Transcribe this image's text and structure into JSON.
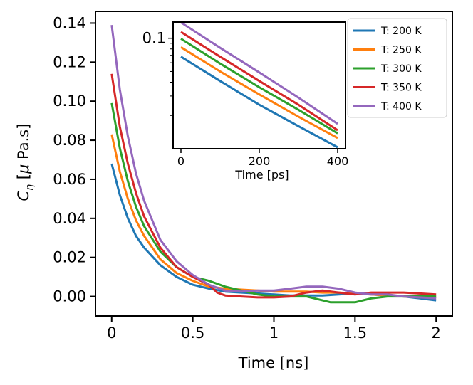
{
  "chart_data": [
    {
      "type": "line",
      "role": "main",
      "xlabel": "Time [ns]",
      "ylabel": "C_η [μ Pa.s]",
      "xlim": [
        -0.1,
        2.1
      ],
      "ylim": [
        -0.01,
        0.146
      ],
      "x_ticks": [
        0,
        0.5,
        1,
        1.5,
        2
      ],
      "x_tick_labels": [
        "0",
        "0.5",
        "1",
        "1.5",
        "2"
      ],
      "y_ticks": [
        0.0,
        0.02,
        0.04,
        0.06,
        0.08,
        0.1,
        0.12,
        0.14
      ],
      "y_tick_labels": [
        "0.00",
        "0.02",
        "0.04",
        "0.06",
        "0.08",
        "0.10",
        "0.12",
        "0.14"
      ],
      "grid": false,
      "legend_position": "top-right",
      "series": [
        {
          "name": "T: 200 K",
          "color": "#1f77b4",
          "x": [
            0,
            0.05,
            0.1,
            0.15,
            0.2,
            0.3,
            0.4,
            0.5,
            0.6,
            0.7,
            0.8,
            0.9,
            1.0,
            1.1,
            1.2,
            1.3,
            1.4,
            1.5,
            1.6,
            1.7,
            1.8,
            1.9,
            2.0
          ],
          "y": [
            0.068,
            0.052,
            0.04,
            0.031,
            0.025,
            0.016,
            0.01,
            0.006,
            0.004,
            0.0025,
            0.002,
            0.0015,
            0.001,
            0.0005,
            0.0005,
            0.0005,
            0.001,
            0.0015,
            0.001,
            0.0005,
            0.0,
            -0.001,
            -0.002
          ]
        },
        {
          "name": "T: 250 K",
          "color": "#ff7f0e",
          "x": [
            0,
            0.05,
            0.1,
            0.15,
            0.2,
            0.3,
            0.4,
            0.5,
            0.6,
            0.7,
            0.8,
            0.9,
            1.0,
            1.1,
            1.2,
            1.3,
            1.4,
            1.5,
            1.6,
            1.7,
            1.8,
            1.9,
            2.0
          ],
          "y": [
            0.083,
            0.064,
            0.05,
            0.039,
            0.031,
            0.019,
            0.012,
            0.008,
            0.005,
            0.004,
            0.0035,
            0.003,
            0.0025,
            0.0025,
            0.0025,
            0.002,
            0.002,
            0.0015,
            0.001,
            0.0005,
            0.0,
            -0.0005,
            -0.0005
          ]
        },
        {
          "name": "T: 300 K",
          "color": "#2ca02c",
          "x": [
            0,
            0.05,
            0.1,
            0.15,
            0.2,
            0.3,
            0.4,
            0.5,
            0.6,
            0.7,
            0.8,
            0.9,
            1.0,
            1.1,
            1.2,
            1.3,
            1.35,
            1.4,
            1.5,
            1.6,
            1.7,
            1.8,
            1.9,
            2.0
          ],
          "y": [
            0.099,
            0.076,
            0.059,
            0.046,
            0.036,
            0.023,
            0.015,
            0.01,
            0.008,
            0.005,
            0.003,
            0.001,
            0.0,
            0.0,
            0.0,
            -0.002,
            -0.003,
            -0.003,
            -0.003,
            -0.001,
            0.0,
            0.0,
            0.0005,
            0.0
          ]
        },
        {
          "name": "T: 350 K",
          "color": "#d62728",
          "x": [
            0,
            0.05,
            0.1,
            0.15,
            0.2,
            0.3,
            0.4,
            0.5,
            0.6,
            0.65,
            0.7,
            0.8,
            0.9,
            1.0,
            1.1,
            1.2,
            1.3,
            1.4,
            1.5,
            1.6,
            1.7,
            1.8,
            1.9,
            2.0
          ],
          "y": [
            0.114,
            0.087,
            0.068,
            0.053,
            0.041,
            0.025,
            0.015,
            0.01,
            0.006,
            0.002,
            0.0005,
            0.0,
            -0.0005,
            -0.0005,
            0.0,
            0.002,
            0.003,
            0.002,
            0.001,
            0.002,
            0.002,
            0.002,
            0.0015,
            0.001
          ]
        },
        {
          "name": "T: 400 K",
          "color": "#9467bd",
          "x": [
            0,
            0.05,
            0.1,
            0.15,
            0.2,
            0.3,
            0.4,
            0.5,
            0.6,
            0.7,
            0.8,
            0.9,
            1.0,
            1.1,
            1.2,
            1.3,
            1.4,
            1.5,
            1.6,
            1.7,
            1.8,
            1.9,
            2.0
          ],
          "y": [
            0.139,
            0.106,
            0.082,
            0.063,
            0.049,
            0.029,
            0.018,
            0.011,
            0.006,
            0.003,
            0.0025,
            0.003,
            0.003,
            0.004,
            0.005,
            0.005,
            0.004,
            0.002,
            0.001,
            0.001,
            0.0,
            -0.0005,
            -0.001
          ]
        }
      ]
    },
    {
      "type": "line",
      "role": "inset",
      "xlabel": "Time [ps]",
      "ylabel": "",
      "y_scale": "log",
      "xlim": [
        -20,
        420
      ],
      "ylim": [
        0.01,
        0.14
      ],
      "x_ticks": [
        0,
        200,
        400
      ],
      "x_tick_labels": [
        "0",
        "200",
        "400"
      ],
      "y_ticks": [
        0.1
      ],
      "y_tick_labels": [
        "0.1"
      ],
      "y_minor_ticks": [
        0.02,
        0.03,
        0.04,
        0.05,
        0.06,
        0.07,
        0.08,
        0.09
      ],
      "grid": false,
      "series": [
        {
          "name": "T: 200 K",
          "color": "#1f77b4",
          "x": [
            0,
            100,
            200,
            300,
            400
          ],
          "y": [
            0.068,
            0.041,
            0.025,
            0.016,
            0.0103
          ]
        },
        {
          "name": "T: 250 K",
          "color": "#ff7f0e",
          "x": [
            0,
            100,
            200,
            300,
            400
          ],
          "y": [
            0.083,
            0.05,
            0.031,
            0.0195,
            0.0125
          ]
        },
        {
          "name": "T: 300 K",
          "color": "#2ca02c",
          "x": [
            0,
            100,
            200,
            300,
            400
          ],
          "y": [
            0.099,
            0.059,
            0.036,
            0.0225,
            0.0138
          ]
        },
        {
          "name": "T: 350 K",
          "color": "#d62728",
          "x": [
            0,
            100,
            200,
            300,
            400
          ],
          "y": [
            0.114,
            0.068,
            0.041,
            0.025,
            0.0147
          ]
        },
        {
          "name": "T: 400 K",
          "color": "#9467bd",
          "x": [
            0,
            100,
            200,
            300,
            400
          ],
          "y": [
            0.139,
            0.082,
            0.049,
            0.029,
            0.0168
          ]
        }
      ]
    }
  ]
}
